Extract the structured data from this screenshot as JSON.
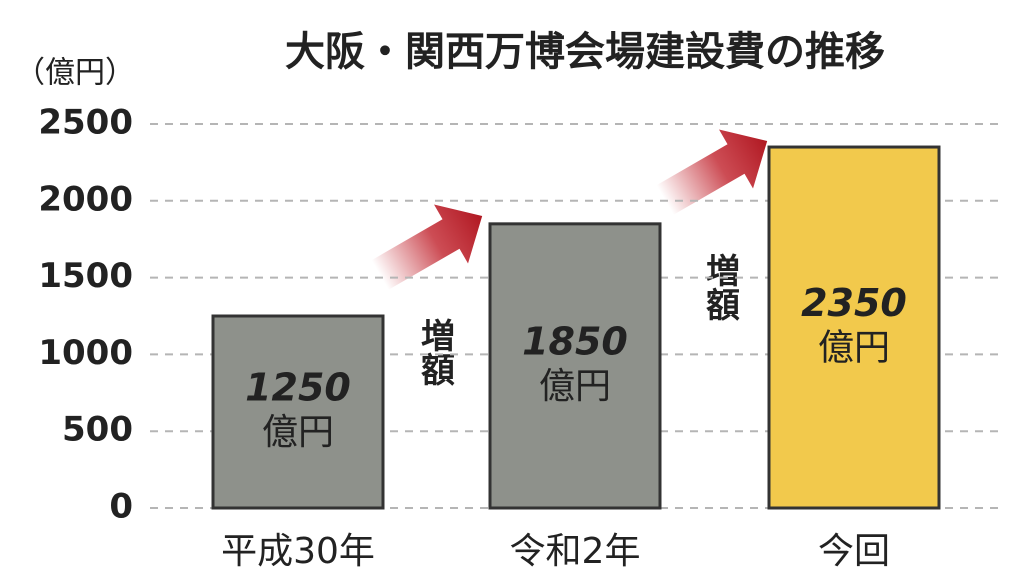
{
  "chart_data": {
    "type": "bar",
    "title": "大阪・関西万博会場建設費の推移",
    "y_label": "（億円）",
    "categories": [
      "平成30年",
      "令和2年",
      "今回"
    ],
    "values": [
      1250,
      1850,
      2350
    ],
    "colors": [
      "#8e918b",
      "#8e918b",
      "#f2c94c"
    ],
    "value_unit": "億円",
    "annotations": [
      "増額",
      "増額"
    ],
    "ylim": [
      0,
      2500
    ],
    "yticks": [
      0,
      500,
      1000,
      1500,
      2000,
      2500
    ],
    "grid": true
  }
}
